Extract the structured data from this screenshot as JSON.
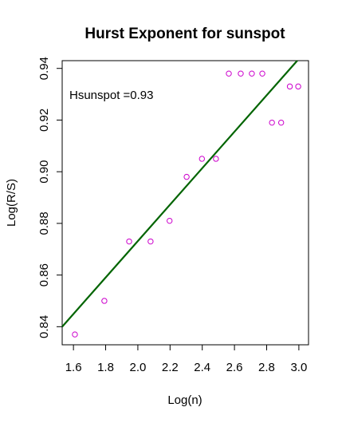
{
  "chart_data": {
    "type": "scatter",
    "title": "Hurst Exponent for sunspot",
    "xlabel": "Log(n)",
    "ylabel": "Log(R/S)",
    "annotation": "Hsunspot =0.93",
    "xlim": [
      1.53,
      3.06
    ],
    "ylim": [
      0.833,
      0.943
    ],
    "xticks": [
      1.6,
      1.8,
      2.0,
      2.2,
      2.4,
      2.6,
      2.8,
      3.0
    ],
    "xtick_labels": [
      "1.6",
      "1.8",
      "2.0",
      "2.2",
      "2.4",
      "2.6",
      "2.8",
      "3.0"
    ],
    "yticks": [
      0.84,
      0.86,
      0.88,
      0.9,
      0.92,
      0.94
    ],
    "ytick_labels": [
      "0.84",
      "0.86",
      "0.88",
      "0.90",
      "0.92",
      "0.94"
    ],
    "grid": false,
    "legend": "none",
    "series": [
      {
        "x": [
          1.609,
          1.792,
          1.946,
          2.079,
          2.197,
          2.303,
          2.398,
          2.485,
          2.565,
          2.639,
          2.708,
          2.773,
          2.833,
          2.89,
          2.944,
          2.996
        ],
        "y": [
          0.837,
          0.85,
          0.873,
          0.873,
          0.881,
          0.898,
          0.905,
          0.905,
          0.938,
          0.938,
          0.938,
          0.938,
          0.919,
          0.919,
          0.933,
          0.933
        ],
        "color": "#cc00cc"
      }
    ],
    "fit_line": {
      "x": [
        1.53,
        2.99
      ],
      "y": [
        0.84,
        0.943
      ],
      "color": "#006400"
    }
  }
}
